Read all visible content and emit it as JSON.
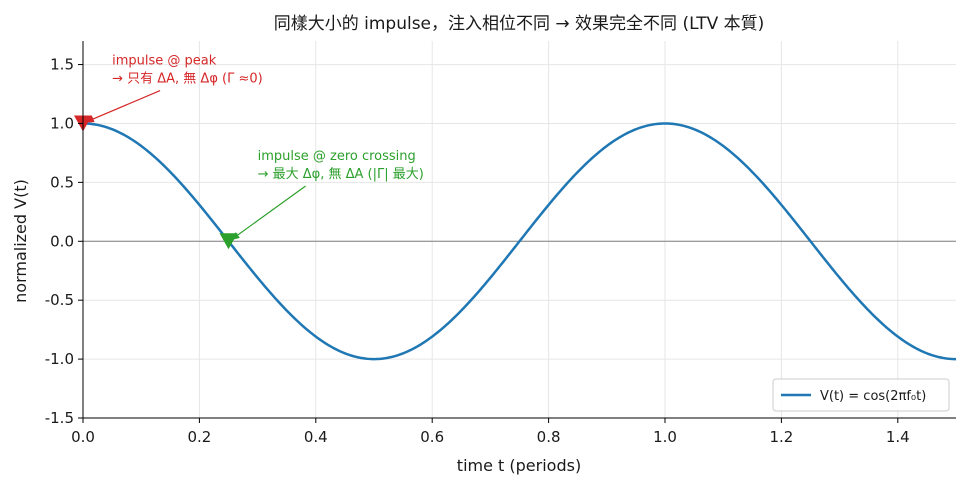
{
  "chart_data": {
    "type": "line",
    "title": "同樣大小的 impulse，注入相位不同 → 效果完全不同 (LTV 本質)",
    "xlabel": "time t (periods)",
    "ylabel": "normalized V(t)",
    "xlim": [
      0.0,
      1.5
    ],
    "ylim": [
      -1.5,
      1.7
    ],
    "x_ticks": [
      0.0,
      0.2,
      0.4,
      0.6,
      0.8,
      1.0,
      1.2,
      1.4
    ],
    "x_tick_labels": [
      "0.0",
      "0.2",
      "0.4",
      "0.6",
      "0.8",
      "1.0",
      "1.2",
      "1.4"
    ],
    "y_ticks": [
      -1.5,
      -1.0,
      -0.5,
      0.0,
      0.5,
      1.0,
      1.5
    ],
    "y_tick_labels": [
      "-1.5",
      "-1.0",
      "-0.5",
      "0.0",
      "0.5",
      "1.0",
      "1.5"
    ],
    "grid": true,
    "zero_line": true,
    "series": [
      {
        "name": "V(t) = cos(2πf₀t)",
        "color": "#1f77b4",
        "function": "cos(2*pi*t)",
        "x_range": [
          0.0,
          1.5
        ]
      }
    ],
    "markers": [
      {
        "x": 0.0,
        "y": 1.0,
        "shape": "triangle-down",
        "color": "#d62728"
      },
      {
        "x": 0.25,
        "y": 0.0,
        "shape": "triangle-down",
        "color": "#2ca02c"
      }
    ],
    "annotations": [
      {
        "color": "#d62728",
        "lines": [
          "impulse @ peak",
          "→ 只有 ΔA, 無 Δφ (Γ ≈0)"
        ],
        "text_at": {
          "x": 0.05,
          "y": 1.5
        },
        "arrow_to": {
          "x": 0.0,
          "y": 1.0
        }
      },
      {
        "color": "#2ca02c",
        "lines": [
          "impulse @ zero crossing",
          "→ 最大 Δφ, 無 ΔA (|Γ| 最大)"
        ],
        "text_at": {
          "x": 0.3,
          "y": 0.69
        },
        "arrow_to": {
          "x": 0.25,
          "y": 0.0
        }
      }
    ],
    "legend": {
      "position": "bottom-right",
      "entries": [
        "V(t) = cos(2πf₀t)"
      ]
    }
  }
}
